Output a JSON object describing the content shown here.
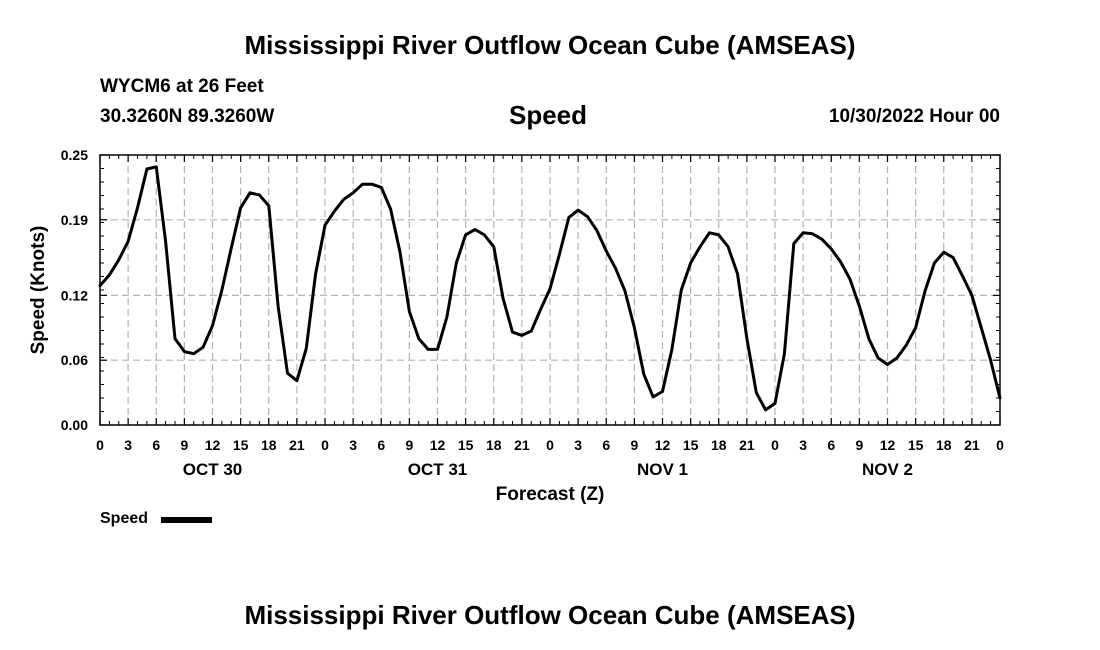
{
  "page": {
    "title": "Mississippi River Outflow Ocean Cube (AMSEAS)",
    "footer_title": "Mississippi River Outflow Ocean Cube (AMSEAS)",
    "station": "WYCM6 at 26 Feet",
    "coords": "30.3260N  89.3260W",
    "date": "10/30/2022 Hour 00"
  },
  "legend": {
    "label": "Speed",
    "color": "#000000"
  },
  "chart_data": {
    "type": "line",
    "title": "Speed",
    "xlabel": "Forecast (Z)",
    "ylabel": "Speed (Knots)",
    "xlim": [
      0,
      96
    ],
    "ylim": [
      0,
      0.25
    ],
    "y_ticks": [
      0,
      0.06,
      0.12,
      0.19,
      0.25
    ],
    "y_tick_labels": [
      "0.00",
      "0.06",
      "0.12",
      "0.19",
      "0.25"
    ],
    "x_ticks": [
      0,
      3,
      6,
      9,
      12,
      15,
      18,
      21,
      24,
      27,
      30,
      33,
      36,
      39,
      42,
      45,
      48,
      51,
      54,
      57,
      60,
      63,
      66,
      69,
      72,
      75,
      78,
      81,
      84,
      87,
      90,
      93,
      96
    ],
    "x_tick_labels": [
      "0",
      "3",
      "6",
      "9",
      "12",
      "15",
      "18",
      "21",
      "0",
      "3",
      "6",
      "9",
      "12",
      "15",
      "18",
      "21",
      "0",
      "3",
      "6",
      "9",
      "12",
      "15",
      "18",
      "21",
      "0",
      "3",
      "6",
      "9",
      "12",
      "15",
      "18",
      "21",
      "0"
    ],
    "day_labels": [
      {
        "text": "OCT 30",
        "x": 12
      },
      {
        "text": "OCT 31",
        "x": 36
      },
      {
        "text": "NOV 1",
        "x": 60
      },
      {
        "text": "NOV 2",
        "x": 84
      }
    ],
    "grid": true,
    "series": [
      {
        "name": "Speed",
        "color": "#000000",
        "x": [
          0,
          1,
          2,
          3,
          4,
          5,
          6,
          7,
          8,
          9,
          10,
          11,
          12,
          13,
          14,
          15,
          16,
          17,
          18,
          19,
          20,
          21,
          22,
          23,
          24,
          25,
          26,
          27,
          28,
          29,
          30,
          31,
          32,
          33,
          34,
          35,
          36,
          37,
          38,
          39,
          40,
          41,
          42,
          43,
          44,
          45,
          46,
          47,
          48,
          49,
          50,
          51,
          52,
          53,
          54,
          55,
          56,
          57,
          58,
          59,
          60,
          61,
          62,
          63,
          64,
          65,
          66,
          67,
          68,
          69,
          70,
          71,
          72,
          73,
          74,
          75,
          76,
          77,
          78,
          79,
          80,
          81,
          82,
          83,
          84,
          85,
          86,
          87,
          88,
          89,
          90,
          91,
          92,
          93,
          94,
          95,
          96
        ],
        "values": [
          0.129,
          0.139,
          0.153,
          0.17,
          0.201,
          0.237,
          0.239,
          0.17,
          0.08,
          0.068,
          0.066,
          0.072,
          0.092,
          0.125,
          0.164,
          0.201,
          0.215,
          0.213,
          0.203,
          0.11,
          0.048,
          0.041,
          0.071,
          0.14,
          0.185,
          0.198,
          0.209,
          0.215,
          0.223,
          0.223,
          0.22,
          0.2,
          0.16,
          0.105,
          0.08,
          0.07,
          0.07,
          0.1,
          0.15,
          0.176,
          0.181,
          0.176,
          0.165,
          0.117,
          0.086,
          0.083,
          0.087,
          0.107,
          0.126,
          0.158,
          0.192,
          0.199,
          0.193,
          0.18,
          0.161,
          0.145,
          0.124,
          0.09,
          0.047,
          0.026,
          0.031,
          0.07,
          0.125,
          0.15,
          0.165,
          0.178,
          0.176,
          0.165,
          0.14,
          0.08,
          0.03,
          0.014,
          0.02,
          0.066,
          0.168,
          0.178,
          0.177,
          0.172,
          0.163,
          0.151,
          0.135,
          0.11,
          0.08,
          0.062,
          0.056,
          0.062,
          0.074,
          0.09,
          0.124,
          0.15,
          0.16,
          0.155,
          0.138,
          0.12,
          0.09,
          0.06,
          0.025
        ]
      }
    ]
  }
}
